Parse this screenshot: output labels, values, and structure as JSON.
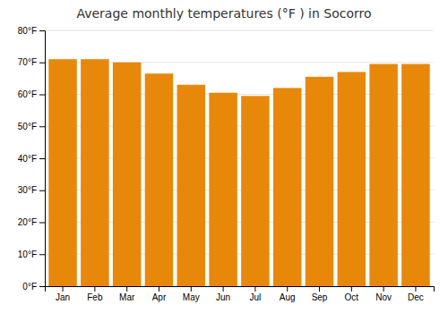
{
  "chart_data": {
    "type": "bar",
    "title": "Average monthly temperatures (°F ) in Socorro",
    "categories": [
      "Jan",
      "Feb",
      "Mar",
      "Apr",
      "May",
      "Jun",
      "Jul",
      "Aug",
      "Sep",
      "Oct",
      "Nov",
      "Dec"
    ],
    "values": [
      71,
      71,
      70,
      66.5,
      63,
      60.5,
      59.5,
      62,
      65.5,
      67,
      69.5,
      69.5
    ],
    "color": "#E8880A",
    "ylim": [
      0,
      80
    ],
    "yticks": [
      {
        "value": 0,
        "label": "0°F"
      },
      {
        "value": 10,
        "label": "10°F"
      },
      {
        "value": 20,
        "label": "20°F"
      },
      {
        "value": 30,
        "label": "30°F"
      },
      {
        "value": 40,
        "label": "40°F"
      },
      {
        "value": 50,
        "label": "50°F"
      },
      {
        "value": 60,
        "label": "60°F"
      },
      {
        "value": 70,
        "label": "70°F"
      },
      {
        "value": 80,
        "label": "80°F"
      }
    ],
    "grid": true
  }
}
